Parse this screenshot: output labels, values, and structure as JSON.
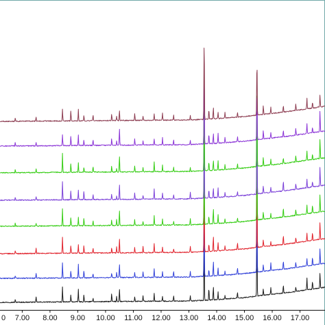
{
  "chart_data": {
    "type": "line",
    "title": "",
    "xlabel": "",
    "ylabel": "",
    "x_axis": {
      "range": [
        6.2,
        17.9
      ],
      "ticks": [
        7.0,
        8.0,
        9.0,
        10.0,
        11.0,
        12.0,
        13.0,
        14.0,
        15.0,
        16.0,
        17.0
      ],
      "tick_labels": [
        "7.00",
        "8.00",
        "9.00",
        "10.00",
        "11.00",
        "12.00",
        "13.00",
        "14.00",
        "15.00",
        "16.00",
        "17.00"
      ],
      "leading_tick_label": "0"
    },
    "y_axis": {
      "range": [
        0,
        450
      ],
      "tick_labels_shown": false
    },
    "grid": false,
    "legend": "none",
    "stacked_offset_traces": true,
    "baseline_curve": [
      {
        "x": 6.2,
        "dy": 0
      },
      {
        "x": 13.0,
        "dy": -2
      },
      {
        "x": 14.0,
        "dy": -4
      },
      {
        "x": 15.0,
        "dy": -7
      },
      {
        "x": 15.6,
        "dy": -10
      },
      {
        "x": 16.5,
        "dy": -14
      },
      {
        "x": 17.9,
        "dy": -22
      }
    ],
    "common_peaks": [
      {
        "x": 6.75,
        "h": 5
      },
      {
        "x": 7.5,
        "h": 6
      },
      {
        "x": 8.45,
        "h": 22
      },
      {
        "x": 8.75,
        "h": 12
      },
      {
        "x": 9.02,
        "h": 16
      },
      {
        "x": 9.22,
        "h": 10
      },
      {
        "x": 9.55,
        "h": 7
      },
      {
        "x": 10.22,
        "h": 9
      },
      {
        "x": 10.4,
        "h": 7
      },
      {
        "x": 10.5,
        "h": 20
      },
      {
        "x": 11.05,
        "h": 9
      },
      {
        "x": 11.35,
        "h": 7
      },
      {
        "x": 11.75,
        "h": 12
      },
      {
        "x": 12.05,
        "h": 9
      },
      {
        "x": 12.45,
        "h": 7
      },
      {
        "x": 13.05,
        "h": 8
      },
      {
        "x": 13.55,
        "h": 100
      },
      {
        "x": 13.72,
        "h": 14
      },
      {
        "x": 13.88,
        "h": 18
      },
      {
        "x": 14.05,
        "h": 12
      },
      {
        "x": 14.3,
        "h": 7
      },
      {
        "x": 14.75,
        "h": 8
      },
      {
        "x": 15.45,
        "h": 105
      },
      {
        "x": 15.68,
        "h": 11
      },
      {
        "x": 15.95,
        "h": 9
      },
      {
        "x": 16.4,
        "h": 12
      },
      {
        "x": 16.85,
        "h": 8
      },
      {
        "x": 17.25,
        "h": 14
      },
      {
        "x": 17.45,
        "h": 10
      },
      {
        "x": 17.72,
        "h": 24
      }
    ],
    "series": [
      {
        "baseline": 441,
        "color": "#1a1a1a",
        "top_cap": 0
      },
      {
        "baseline": 406,
        "color": "#2f3fd8",
        "top_cap": 0
      },
      {
        "baseline": 370,
        "color": "#e0202a",
        "top_cap": 0
      },
      {
        "baseline": 330,
        "color": "#33cc11",
        "top_cap": 0
      },
      {
        "baseline": 292,
        "color": "#7a3fd8",
        "top_cap": 0
      },
      {
        "baseline": 252,
        "color": "#33cc11",
        "top_cap": 0
      },
      {
        "baseline": 213,
        "color": "#8a33d6",
        "top_cap": 0
      },
      {
        "baseline": 177,
        "color": "#8b3a4f",
        "top_cap": 70
      }
    ]
  }
}
